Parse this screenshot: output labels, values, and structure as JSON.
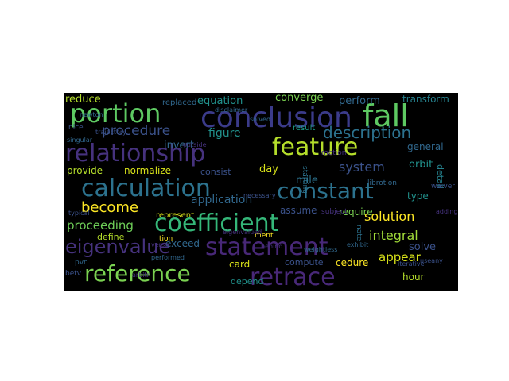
{
  "cloud": {
    "background": "#000000",
    "colormap": "viridis",
    "words": [
      {
        "text": "conclusion",
        "color": "#3b3b8a"
      },
      {
        "text": "fall",
        "color": "#5ec962"
      },
      {
        "text": "portion",
        "color": "#5ec962"
      },
      {
        "text": "relationship",
        "color": "#46327e"
      },
      {
        "text": "feature",
        "color": "#b5de2b"
      },
      {
        "text": "calculation",
        "color": "#2c728e"
      },
      {
        "text": "constant",
        "color": "#2c728e"
      },
      {
        "text": "coefficient",
        "color": "#35b779"
      },
      {
        "text": "statement",
        "color": "#482878"
      },
      {
        "text": "reference",
        "color": "#7ad151"
      },
      {
        "text": "retrace",
        "color": "#482878"
      },
      {
        "text": "eigenvalue",
        "color": "#46327e"
      },
      {
        "text": "description",
        "color": "#2c728e"
      },
      {
        "text": "procedure",
        "color": "#3b528b"
      },
      {
        "text": "become",
        "color": "#fde725"
      },
      {
        "text": "solution",
        "color": "#fde725"
      },
      {
        "text": "integral",
        "color": "#a0da39"
      },
      {
        "text": "appear",
        "color": "#d8e219"
      },
      {
        "text": "system",
        "color": "#3b528b"
      },
      {
        "text": "figure",
        "color": "#21918c"
      },
      {
        "text": "application",
        "color": "#31688e"
      },
      {
        "text": "proceeding",
        "color": "#6ece58"
      },
      {
        "text": "equation",
        "color": "#21918c"
      },
      {
        "text": "converge",
        "color": "#7ad151"
      },
      {
        "text": "perform",
        "color": "#31688e"
      },
      {
        "text": "transform",
        "color": "#26828e"
      },
      {
        "text": "reduce",
        "color": "#b5de2b"
      },
      {
        "text": "invert",
        "color": "#31688e"
      },
      {
        "text": "provide",
        "color": "#b5de2b"
      },
      {
        "text": "normalize",
        "color": "#d8e219"
      },
      {
        "text": "consist",
        "color": "#3b528b"
      },
      {
        "text": "day",
        "color": "#d8e219"
      },
      {
        "text": "mile",
        "color": "#2c728e"
      },
      {
        "text": "general",
        "color": "#31688e"
      },
      {
        "text": "orbit",
        "color": "#21918c"
      },
      {
        "text": "type",
        "color": "#21918c"
      },
      {
        "text": "detail",
        "color": "#26828e"
      },
      {
        "text": "result",
        "color": "#1f9e89"
      },
      {
        "text": "solve",
        "color": "#3b528b"
      },
      {
        "text": "define",
        "color": "#b5de2b"
      },
      {
        "text": "assume",
        "color": "#3b528b"
      },
      {
        "text": "require",
        "color": "#7ad151"
      },
      {
        "text": "exceed",
        "color": "#31688e"
      },
      {
        "text": "card",
        "color": "#d8e219"
      },
      {
        "text": "compute",
        "color": "#3b528b"
      },
      {
        "text": "cedure",
        "color": "#fde725"
      },
      {
        "text": "hour",
        "color": "#b5de2b"
      },
      {
        "text": "depend",
        "color": "#21918c"
      },
      {
        "text": "represent",
        "color": "#d8e219"
      },
      {
        "text": "ment",
        "color": "#fde725"
      },
      {
        "text": "tion",
        "color": "#fde725"
      },
      {
        "text": "pvn",
        "color": "#31688e"
      },
      {
        "text": "betv",
        "color": "#3b528b"
      },
      {
        "text": "replaced",
        "color": "#31688e"
      },
      {
        "text": "nice",
        "color": "#3b528b"
      },
      {
        "text": "singular",
        "color": "#31688e"
      },
      {
        "text": "newton",
        "color": "#31688e"
      },
      {
        "text": "typical",
        "color": "#3b528b"
      },
      {
        "text": "versa",
        "color": "#46327e"
      },
      {
        "text": "motion",
        "color": "#46327e"
      },
      {
        "text": "starting",
        "color": "#2c728e"
      },
      {
        "text": "disclaimer",
        "color": "#31688e"
      },
      {
        "text": "solved",
        "color": "#31688e"
      },
      {
        "text": "librotion",
        "color": "#31688e"
      },
      {
        "text": "waiver",
        "color": "#3b528b"
      },
      {
        "text": "adding",
        "color": "#46327e"
      },
      {
        "text": "iterative",
        "color": "#3b528b"
      },
      {
        "text": "useany",
        "color": "#3b528b"
      },
      {
        "text": "exhibit",
        "color": "#31688e"
      },
      {
        "text": "subject",
        "color": "#46327e"
      },
      {
        "text": "nate",
        "color": "#2c728e"
      },
      {
        "text": "necessary",
        "color": "#3b528b"
      },
      {
        "text": "performed",
        "color": "#31688e"
      },
      {
        "text": "trajectory",
        "color": "#3b528b"
      },
      {
        "text": "outside",
        "color": "#46327e"
      },
      {
        "text": "eigenvalued",
        "color": "#46327e"
      },
      {
        "text": "weightless",
        "color": "#31688e"
      },
      {
        "text": "arbitr",
        "color": "#46327e"
      },
      {
        "text": "behind",
        "color": "#46327e"
      }
    ]
  }
}
